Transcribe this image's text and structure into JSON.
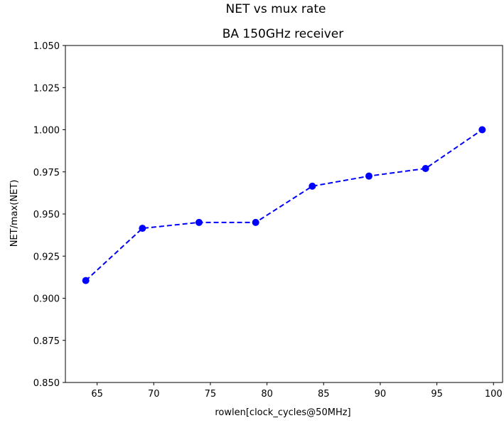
{
  "chart_data": {
    "type": "line",
    "title": "NET vs mux rate",
    "subtitle": "BA 150GHz receiver",
    "xlabel": "rowlen[clock_cycles@50MHz]",
    "ylabel": "NET/max(NET)",
    "xlim": [
      62.2,
      100.8
    ],
    "ylim": [
      0.85,
      1.05
    ],
    "x_ticks": [
      65,
      70,
      75,
      80,
      85,
      90,
      95,
      100
    ],
    "y_ticks": [
      0.85,
      0.875,
      0.9,
      0.925,
      0.95,
      0.975,
      1.0,
      1.025,
      1.05
    ],
    "x_tick_labels": [
      "65",
      "70",
      "75",
      "80",
      "85",
      "90",
      "95",
      "100"
    ],
    "y_tick_labels": [
      "0.850",
      "0.875",
      "0.900",
      "0.925",
      "0.950",
      "0.975",
      "1.000",
      "1.025",
      "1.050"
    ],
    "grid": false,
    "series": [
      {
        "color": "#0000ff",
        "line_style": "dashed",
        "marker": "circle",
        "x": [
          64,
          69,
          74,
          79,
          84,
          89,
          94,
          99
        ],
        "y": [
          0.9105,
          0.9415,
          0.945,
          0.945,
          0.9665,
          0.9725,
          0.977,
          1.0
        ]
      }
    ]
  }
}
